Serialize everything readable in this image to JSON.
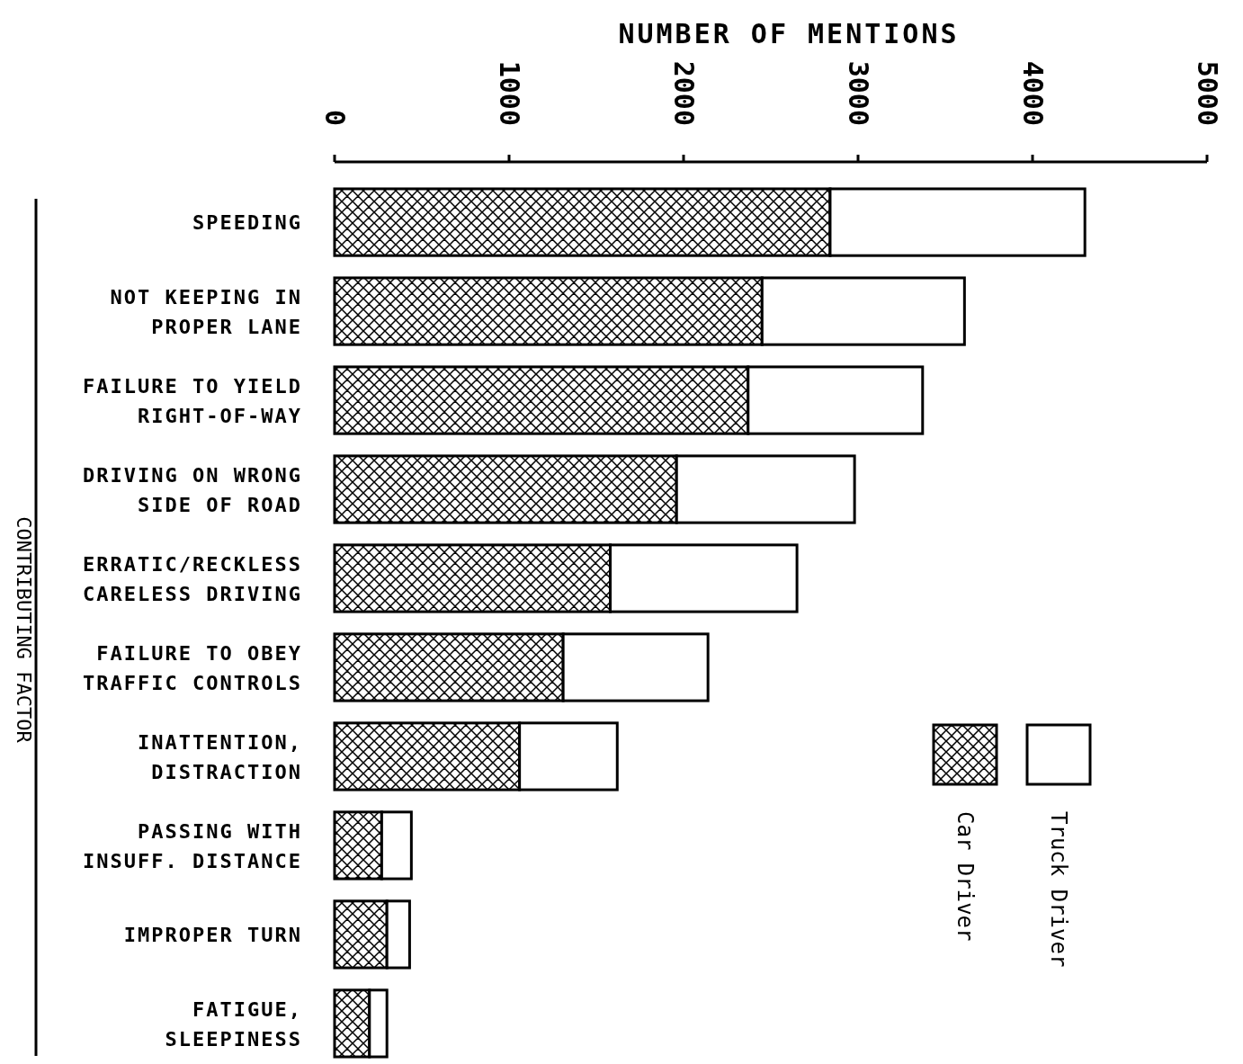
{
  "chart_data": {
    "type": "bar",
    "orientation": "horizontal",
    "stacked": true,
    "xlabel": "NUMBER OF MENTIONS",
    "ylabel": "CONTRIBUTING FACTOR",
    "categories": [
      "SPEEDING",
      "NOT KEEPING IN\nPROPER LANE",
      "FAILURE TO YIELD\nRIGHT-OF-WAY",
      "DRIVING ON WRONG\nSIDE OF ROAD",
      "ERRATIC/RECKLESS\nCARELESS DRIVING",
      "FAILURE TO OBEY\nTRAFFIC CONTROLS",
      "INATTENTION,\nDISTRACTION",
      "PASSING WITH\nINSUFF. DISTANCE",
      "IMPROPER TURN",
      "FATIGUE,\nSLEEPINESS"
    ],
    "series": [
      {
        "name": "Car Driver",
        "color": "#000000",
        "values": [
          2840,
          2450,
          2370,
          1960,
          1580,
          1310,
          1060,
          270,
          300,
          200
        ]
      },
      {
        "name": "Truck Driver",
        "color": "#ffffff",
        "values": [
          1460,
          1160,
          1000,
          1020,
          1070,
          830,
          560,
          170,
          130,
          100
        ]
      }
    ],
    "xlim": [
      0,
      5000
    ],
    "xticks": [
      0,
      1000,
      2000,
      3000,
      4000,
      5000
    ],
    "grid": false,
    "legend": "right"
  }
}
